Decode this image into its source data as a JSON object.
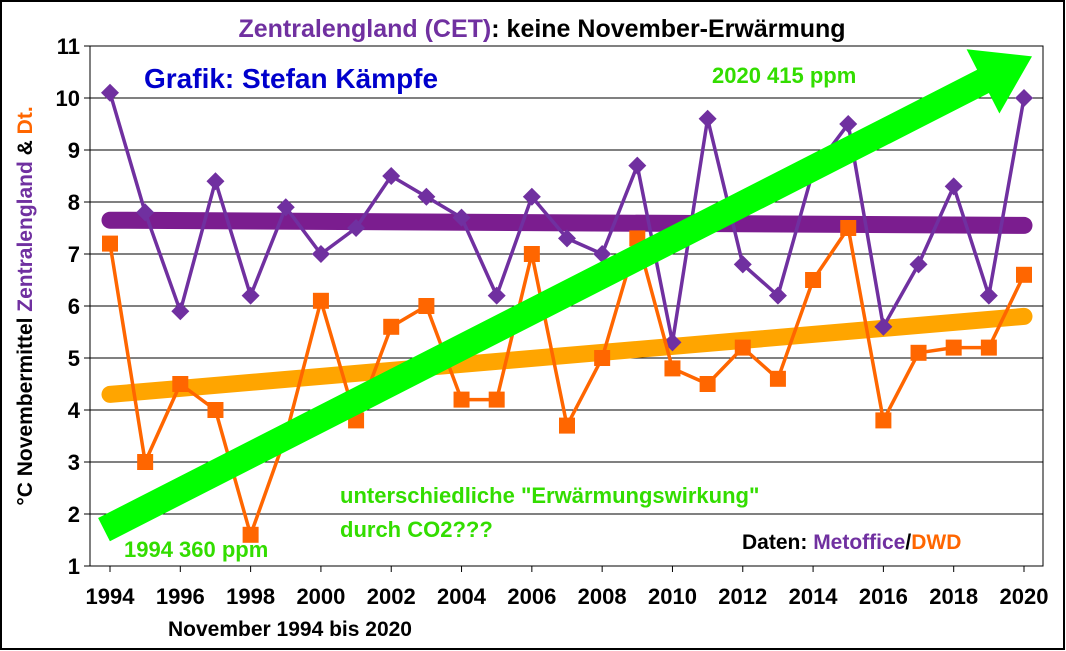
{
  "chart_data": {
    "type": "line",
    "title": {
      "part1": "Zentralengland (CET)",
      "part2": ": keine November-Erwärmung"
    },
    "credit": "Grafik: Stefan Kämpfe",
    "ylabel": {
      "part1": "°C Novembermittel ",
      "part2": "Zentralengland",
      "part3": " & ",
      "part4": "Dt."
    },
    "xlabel": "November 1994 bis 2020",
    "x_ticks": [
      "1994",
      "1996",
      "1998",
      "2000",
      "2002",
      "2004",
      "2006",
      "2008",
      "2010",
      "2012",
      "2014",
      "2016",
      "2018",
      "2020"
    ],
    "y_ticks": [
      "1",
      "2",
      "3",
      "4",
      "5",
      "6",
      "7",
      "8",
      "9",
      "10",
      "11"
    ],
    "ylim": [
      1,
      11
    ],
    "xlim": [
      1994,
      2020
    ],
    "grid": "horizontal",
    "x": [
      1994,
      1995,
      1996,
      1997,
      1998,
      1999,
      2000,
      2001,
      2002,
      2003,
      2004,
      2005,
      2006,
      2007,
      2008,
      2009,
      2010,
      2011,
      2012,
      2013,
      2014,
      2015,
      2016,
      2017,
      2018,
      2019,
      2020
    ],
    "series": [
      {
        "name": "Metoffice",
        "color": "#7030a0",
        "marker": "diamond",
        "values": [
          10.1,
          7.8,
          5.9,
          8.4,
          6.2,
          7.9,
          7.0,
          7.5,
          8.5,
          8.1,
          7.7,
          6.2,
          8.1,
          7.3,
          7.0,
          8.7,
          5.3,
          9.6,
          6.8,
          6.2,
          8.6,
          9.5,
          5.6,
          6.8,
          8.3,
          6.2,
          10.0
        ],
        "trend": [
          7.65,
          7.55
        ],
        "trend_color": "#7b1d8f"
      },
      {
        "name": "DWD",
        "color": "#ff6600",
        "marker": "square",
        "values": [
          7.2,
          3.0,
          4.5,
          4.0,
          1.6,
          3.5,
          6.1,
          3.8,
          5.6,
          6.0,
          4.2,
          4.2,
          7.0,
          3.7,
          5.0,
          7.3,
          4.8,
          4.5,
          5.2,
          4.6,
          6.5,
          7.5,
          3.8,
          5.1,
          5.2,
          5.2,
          6.6
        ],
        "trend": [
          4.3,
          5.8
        ],
        "trend_color": "#ffa500"
      }
    ],
    "co2_arrow": {
      "color": "#00ff00",
      "from": [
        1994,
        1.7
      ],
      "to": [
        2020,
        10.8
      ],
      "start_label": "1994 360 ppm",
      "end_label": "2020 415 ppm"
    },
    "annotation": {
      "line1": "unterschiedliche \"Erwärmungswirkung\"",
      "line2": "durch CO2???",
      "color": "#33dd00"
    },
    "source": {
      "prefix": "Daten: ",
      "part1": "Metoffice",
      "sep": "/",
      "part2": "DWD"
    }
  }
}
